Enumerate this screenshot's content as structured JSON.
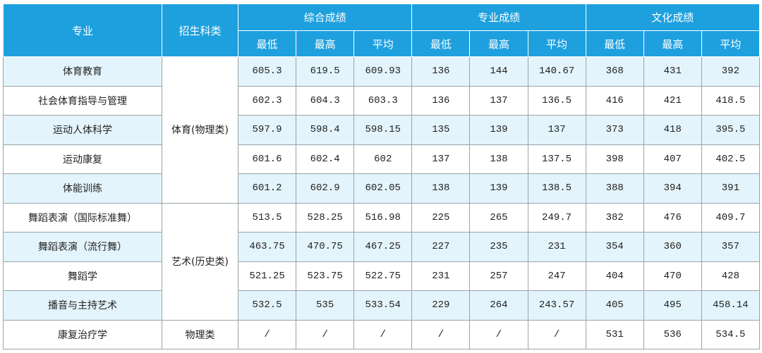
{
  "header": {
    "major": "专业",
    "category": "招生科类",
    "groups": [
      {
        "name": "综合成绩",
        "sub": [
          "最低",
          "最高",
          "平均"
        ]
      },
      {
        "name": "专业成绩",
        "sub": [
          "最低",
          "最高",
          "平均"
        ]
      },
      {
        "name": "文化成绩",
        "sub": [
          "最低",
          "最高",
          "平均"
        ]
      }
    ]
  },
  "groups": [
    {
      "category": "体育(物理类)",
      "rows": [
        {
          "major": "体育教育",
          "scores": [
            "605.3",
            "619.5",
            "609.93",
            "136",
            "144",
            "140.67",
            "368",
            "431",
            "392"
          ]
        },
        {
          "major": "社会体育指导与管理",
          "scores": [
            "602.3",
            "604.3",
            "603.3",
            "136",
            "137",
            "136.5",
            "416",
            "421",
            "418.5"
          ]
        },
        {
          "major": "运动人体科学",
          "scores": [
            "597.9",
            "598.4",
            "598.15",
            "135",
            "139",
            "137",
            "373",
            "418",
            "395.5"
          ]
        },
        {
          "major": "运动康复",
          "scores": [
            "601.6",
            "602.4",
            "602",
            "137",
            "138",
            "137.5",
            "398",
            "407",
            "402.5"
          ]
        },
        {
          "major": "体能训练",
          "scores": [
            "601.2",
            "602.9",
            "602.05",
            "138",
            "139",
            "138.5",
            "388",
            "394",
            "391"
          ]
        }
      ]
    },
    {
      "category": "艺术(历史类)",
      "rows": [
        {
          "major": "舞蹈表演（国际标准舞）",
          "scores": [
            "513.5",
            "528.25",
            "516.98",
            "225",
            "265",
            "249.7",
            "382",
            "476",
            "409.7"
          ]
        },
        {
          "major": "舞蹈表演（流行舞）",
          "scores": [
            "463.75",
            "470.75",
            "467.25",
            "227",
            "235",
            "231",
            "354",
            "360",
            "357"
          ]
        },
        {
          "major": "舞蹈学",
          "scores": [
            "521.25",
            "523.75",
            "522.75",
            "231",
            "257",
            "247",
            "404",
            "470",
            "428"
          ]
        },
        {
          "major": "播音与主持艺术",
          "scores": [
            "532.5",
            "535",
            "533.54",
            "229",
            "264",
            "243.57",
            "405",
            "495",
            "458.14"
          ]
        }
      ]
    },
    {
      "category": "物理类",
      "rows": [
        {
          "major": "康复治疗学",
          "scores": [
            "/",
            "/",
            "/",
            "/",
            "/",
            "/",
            "531",
            "536",
            "534.5"
          ]
        }
      ]
    }
  ]
}
